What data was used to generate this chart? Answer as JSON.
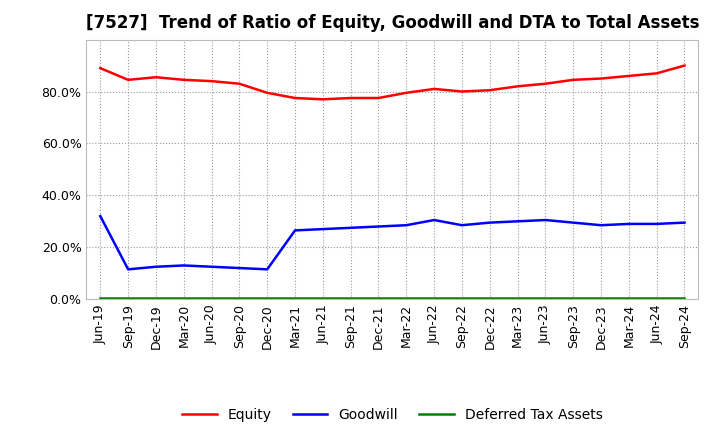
{
  "title": "[7527]  Trend of Ratio of Equity, Goodwill and DTA to Total Assets",
  "x_labels": [
    "Jun-19",
    "Sep-19",
    "Dec-19",
    "Mar-20",
    "Jun-20",
    "Sep-20",
    "Dec-20",
    "Mar-21",
    "Jun-21",
    "Sep-21",
    "Dec-21",
    "Mar-22",
    "Jun-22",
    "Sep-22",
    "Dec-22",
    "Mar-23",
    "Jun-23",
    "Sep-23",
    "Dec-23",
    "Mar-24",
    "Jun-24",
    "Sep-24"
  ],
  "equity": [
    89.0,
    84.5,
    85.5,
    84.5,
    84.0,
    83.0,
    79.5,
    77.5,
    77.0,
    77.5,
    77.5,
    79.5,
    81.0,
    80.0,
    80.5,
    82.0,
    83.0,
    84.5,
    85.0,
    86.0,
    87.0,
    90.0
  ],
  "goodwill": [
    32.0,
    11.5,
    12.5,
    13.0,
    12.5,
    12.0,
    11.5,
    26.5,
    27.0,
    27.5,
    28.0,
    28.5,
    30.5,
    28.5,
    29.5,
    30.0,
    30.5,
    29.5,
    28.5,
    29.0,
    29.0,
    29.5
  ],
  "dta": [
    0.5,
    0.5,
    0.5,
    0.5,
    0.5,
    0.5,
    0.5,
    0.5,
    0.5,
    0.5,
    0.5,
    0.5,
    0.5,
    0.5,
    0.5,
    0.5,
    0.5,
    0.5,
    0.5,
    0.5,
    0.5,
    0.5
  ],
  "equity_color": "#ff0000",
  "goodwill_color": "#0000ff",
  "dta_color": "#008000",
  "background_color": "#ffffff",
  "plot_bg_color": "#ffffff",
  "grid_color": "#999999",
  "ylim": [
    0,
    100
  ],
  "yticks": [
    0,
    20,
    40,
    60,
    80
  ],
  "legend_labels": [
    "Equity",
    "Goodwill",
    "Deferred Tax Assets"
  ],
  "title_fontsize": 12,
  "tick_fontsize": 9,
  "line_width": 1.8
}
